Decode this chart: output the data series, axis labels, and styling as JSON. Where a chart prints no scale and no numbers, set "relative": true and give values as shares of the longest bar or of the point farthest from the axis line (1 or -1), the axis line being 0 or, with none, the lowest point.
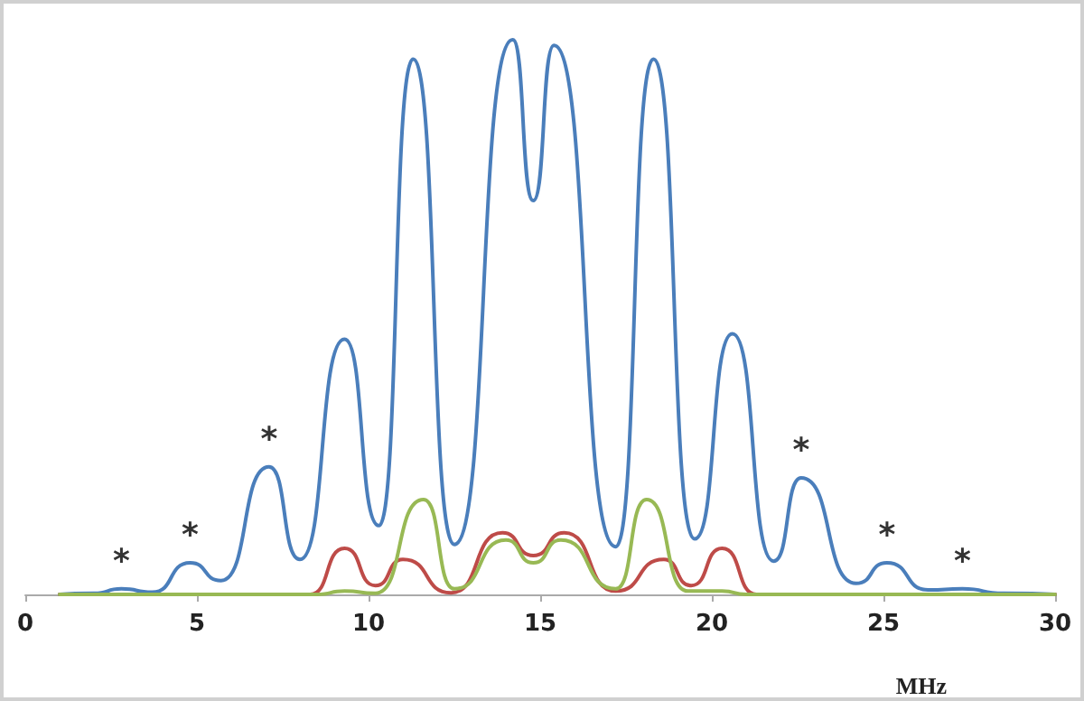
{
  "chart_data": {
    "type": "line",
    "relative": true,
    "xlabel": "MHz",
    "xlim": [
      0,
      30
    ],
    "xticks": [
      0,
      5,
      10,
      15,
      20,
      25,
      30
    ],
    "grid": false,
    "marker": "none",
    "line_style": "solid",
    "series": [
      {
        "color": "#4a7ebb",
        "x": [
          1.0,
          2.0,
          2.8,
          3.7,
          4.8,
          5.7,
          7.1,
          8.0,
          9.3,
          10.3,
          11.3,
          12.5,
          14.2,
          14.8,
          15.4,
          17.2,
          18.3,
          19.5,
          20.6,
          21.8,
          22.6,
          24.2,
          25.1,
          26.3,
          27.3,
          28.5,
          30.0
        ],
        "values": [
          0,
          0.002,
          0.01,
          0.004,
          0.057,
          0.025,
          0.23,
          0.063,
          0.46,
          0.124,
          0.965,
          0.09,
          1.0,
          0.71,
          0.99,
          0.086,
          0.965,
          0.1,
          0.47,
          0.06,
          0.21,
          0.02,
          0.057,
          0.008,
          0.01,
          0.002,
          0
        ]
      },
      {
        "color": "#be4b48",
        "x": [
          1.0,
          8.3,
          9.3,
          10.2,
          11.0,
          12.4,
          13.9,
          14.8,
          15.7,
          17.2,
          18.6,
          19.4,
          20.3,
          21.3,
          30.0
        ],
        "values": [
          0,
          0,
          0.083,
          0.016,
          0.063,
          0.003,
          0.111,
          0.07,
          0.111,
          0.006,
          0.063,
          0.016,
          0.083,
          0,
          0
        ]
      },
      {
        "color": "#98b954",
        "x": [
          1.0,
          8.5,
          9.3,
          10.2,
          11.6,
          12.5,
          14.0,
          14.8,
          15.6,
          17.2,
          18.1,
          19.3,
          20.3,
          21.0,
          30.0
        ],
        "values": [
          0,
          0,
          0.006,
          0.002,
          0.171,
          0.01,
          0.098,
          0.057,
          0.098,
          0.01,
          0.171,
          0.006,
          0.006,
          0,
          0
        ]
      }
    ],
    "annotations": [
      {
        "text": "*",
        "x": 2.8,
        "y": 0.01
      },
      {
        "text": "*",
        "x": 4.8,
        "y": 0.057
      },
      {
        "text": "*",
        "x": 7.1,
        "y": 0.23
      },
      {
        "text": "*",
        "x": 22.6,
        "y": 0.21
      },
      {
        "text": "*",
        "x": 25.1,
        "y": 0.057
      },
      {
        "text": "*",
        "x": 27.3,
        "y": 0.01
      }
    ]
  }
}
